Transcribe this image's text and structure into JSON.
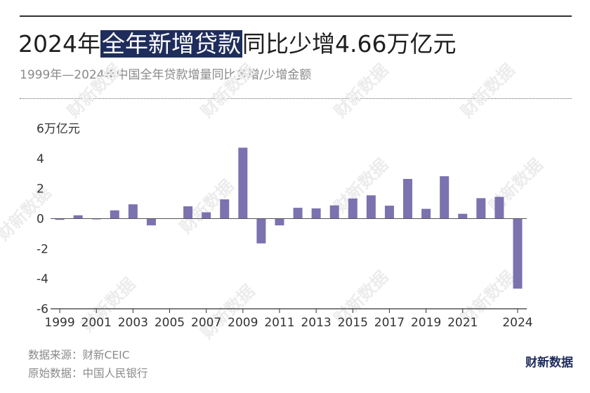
{
  "header": {
    "title_pre": "2024年",
    "title_highlight": "全年新增贷款",
    "title_post": "同比少增4.66万亿元",
    "subtitle": "1999年—2024年中国全年贷款增量同比多增/少增金额"
  },
  "footer": {
    "source": "数据来源：财新CEIC",
    "origin": "原始数据：中国人民银行",
    "brand": "财新数据",
    "watermark": "财新数据"
  },
  "colors": {
    "bar": "#7b72b0",
    "title_highlight_bg": "#1f2d5c",
    "brand": "#1f2d5c"
  },
  "chart_data": {
    "type": "bar",
    "ylabel": "万亿元",
    "ylim": [
      -6,
      6
    ],
    "yticks": [
      -6,
      -4,
      -2,
      0,
      2,
      4,
      6
    ],
    "ytick_labels": [
      "-6",
      "-4",
      "-2",
      "0",
      "2",
      "4",
      "6万亿元"
    ],
    "xtick_labels": [
      "1999",
      "2001",
      "2003",
      "2005",
      "2007",
      "2009",
      "2011",
      "2013",
      "2015",
      "2017",
      "2019",
      "2021",
      "2024"
    ],
    "grid": false,
    "categories": [
      "1999",
      "2000",
      "2001",
      "2002",
      "2003",
      "2004",
      "2005",
      "2006",
      "2007",
      "2008",
      "2009",
      "2010",
      "2011",
      "2012",
      "2013",
      "2014",
      "2015",
      "2016",
      "2017",
      "2018",
      "2019",
      "2020",
      "2021",
      "2022",
      "2023",
      "2024"
    ],
    "values": [
      -0.08,
      0.22,
      -0.05,
      0.55,
      0.95,
      -0.45,
      0.0,
      0.82,
      0.42,
      1.28,
      4.72,
      -1.65,
      -0.45,
      0.72,
      0.68,
      0.88,
      1.34,
      1.55,
      0.86,
      2.64,
      0.65,
      2.82,
      0.32,
      1.36,
      1.45,
      -4.66
    ]
  }
}
